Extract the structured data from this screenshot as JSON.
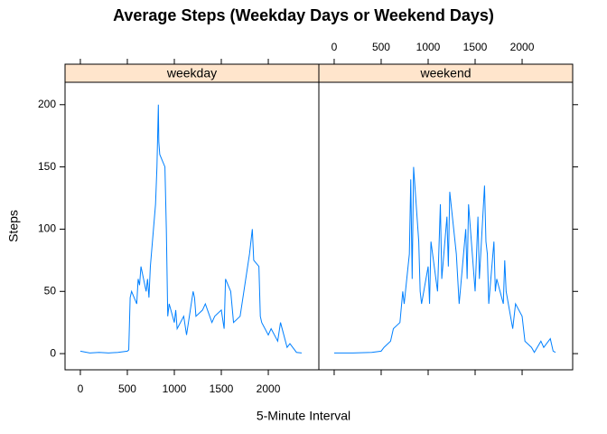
{
  "chart_data": {
    "type": "line",
    "title": "Average Steps (Weekday Days or Weekend Days)",
    "x_label": "5-Minute Interval",
    "y_label": "Steps",
    "xlim": [
      -163,
      2538
    ],
    "ylim": [
      -13,
      218
    ],
    "xticks": [
      0,
      500,
      1000,
      1500,
      2000
    ],
    "yticks": [
      0,
      50,
      100,
      150,
      200
    ],
    "strip_color": "#ffe5cc",
    "series": [
      {
        "name": "weekday",
        "color": "#0080ff",
        "x": [
          0,
          100,
          200,
          300,
          400,
          500,
          515,
          530,
          545,
          600,
          615,
          630,
          645,
          700,
          715,
          730,
          745,
          800,
          815,
          830,
          835,
          845,
          900,
          915,
          930,
          945,
          1000,
          1015,
          1030,
          1100,
          1130,
          1200,
          1215,
          1230,
          1300,
          1330,
          1400,
          1430,
          1500,
          1530,
          1545,
          1600,
          1630,
          1700,
          1730,
          1800,
          1830,
          1845,
          1900,
          1915,
          1930,
          2000,
          2030,
          2100,
          2130,
          2200,
          2230,
          2300,
          2355
        ],
        "values": [
          2,
          0.5,
          1,
          0.5,
          1,
          2,
          3,
          45,
          50,
          40,
          60,
          55,
          70,
          50,
          60,
          45,
          70,
          120,
          150,
          200,
          170,
          160,
          150,
          100,
          30,
          40,
          25,
          35,
          20,
          30,
          15,
          50,
          45,
          30,
          35,
          40,
          25,
          30,
          35,
          20,
          60,
          50,
          25,
          30,
          45,
          80,
          100,
          75,
          70,
          30,
          25,
          15,
          20,
          10,
          25,
          5,
          8,
          1,
          0.5
        ]
      },
      {
        "name": "weekend",
        "color": "#0080ff",
        "x": [
          0,
          200,
          400,
          500,
          530,
          600,
          630,
          700,
          730,
          745,
          800,
          815,
          830,
          845,
          900,
          915,
          930,
          1000,
          1015,
          1030,
          1100,
          1130,
          1145,
          1200,
          1215,
          1230,
          1300,
          1330,
          1400,
          1415,
          1430,
          1500,
          1530,
          1545,
          1600,
          1615,
          1630,
          1645,
          1700,
          1715,
          1730,
          1800,
          1815,
          1830,
          1900,
          1930,
          2000,
          2030,
          2100,
          2130,
          2200,
          2230,
          2300,
          2330,
          2355
        ],
        "values": [
          0.5,
          0.5,
          1,
          2,
          5,
          10,
          20,
          25,
          50,
          40,
          80,
          140,
          60,
          150,
          90,
          50,
          40,
          70,
          40,
          90,
          50,
          120,
          60,
          110,
          70,
          130,
          80,
          40,
          100,
          60,
          120,
          50,
          110,
          60,
          135,
          90,
          80,
          40,
          90,
          50,
          60,
          40,
          75,
          50,
          20,
          40,
          30,
          10,
          5,
          1,
          10,
          5,
          12,
          2,
          1
        ]
      }
    ]
  }
}
